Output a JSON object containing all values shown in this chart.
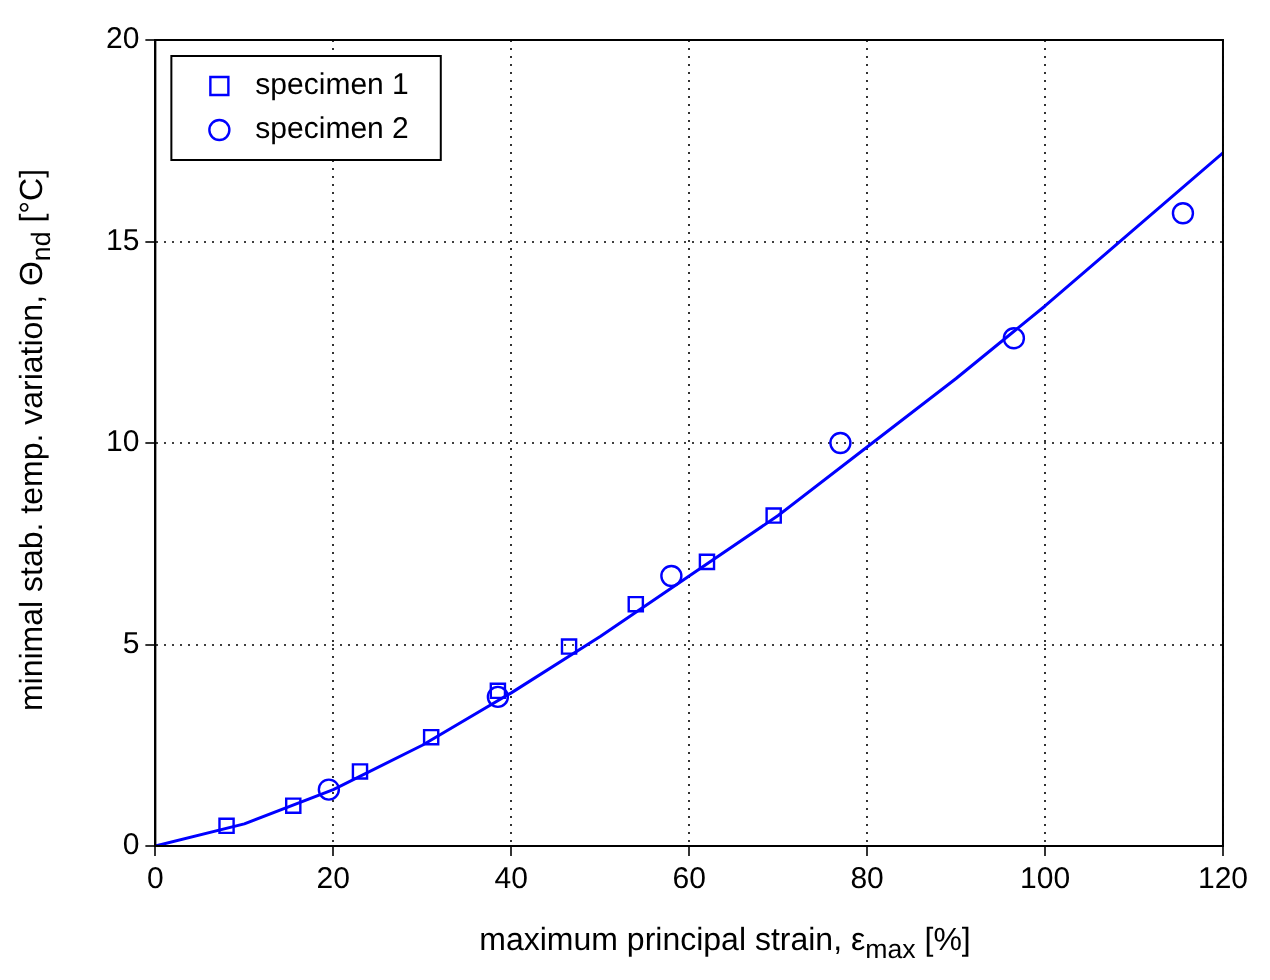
{
  "chart_data": {
    "type": "scatter",
    "xlabel": "maximum principal strain, ε$_{max}$ [%]",
    "ylabel": "minimal stab. temp. variation, Θ$_{nd}$ [°C]",
    "xlim": [
      0,
      120
    ],
    "xticks": [
      0,
      20,
      40,
      60,
      80,
      100,
      120
    ],
    "ylim": [
      0,
      20
    ],
    "yticks": [
      0,
      5,
      10,
      15,
      20
    ],
    "grid": true,
    "legend": "top left",
    "series": [
      {
        "name": "specimen 1",
        "type": "scatter",
        "marker": "square",
        "color": "#0000ff",
        "x": [
          8,
          15.5,
          23,
          31,
          38.5,
          46.5,
          54,
          62,
          69.5
        ],
        "values": [
          0.5,
          1.0,
          1.85,
          2.7,
          3.85,
          4.95,
          6.0,
          7.05,
          8.2
        ]
      },
      {
        "name": "specimen 2",
        "type": "scatter",
        "marker": "circle",
        "color": "#0000ff",
        "x": [
          19.5,
          38.5,
          58,
          77,
          96.5,
          115.5
        ],
        "values": [
          1.4,
          3.7,
          6.7,
          10.0,
          12.6,
          15.7
        ]
      },
      {
        "type": "line",
        "marker": "none",
        "color": "#0000ff",
        "x": [
          0,
          10,
          20,
          30,
          40,
          50,
          60,
          70,
          80,
          90,
          100,
          110,
          120
        ],
        "values": [
          0,
          0.55,
          1.4,
          2.5,
          3.8,
          5.2,
          6.7,
          8.2,
          9.9,
          11.6,
          13.4,
          15.3,
          17.2
        ]
      }
    ]
  }
}
